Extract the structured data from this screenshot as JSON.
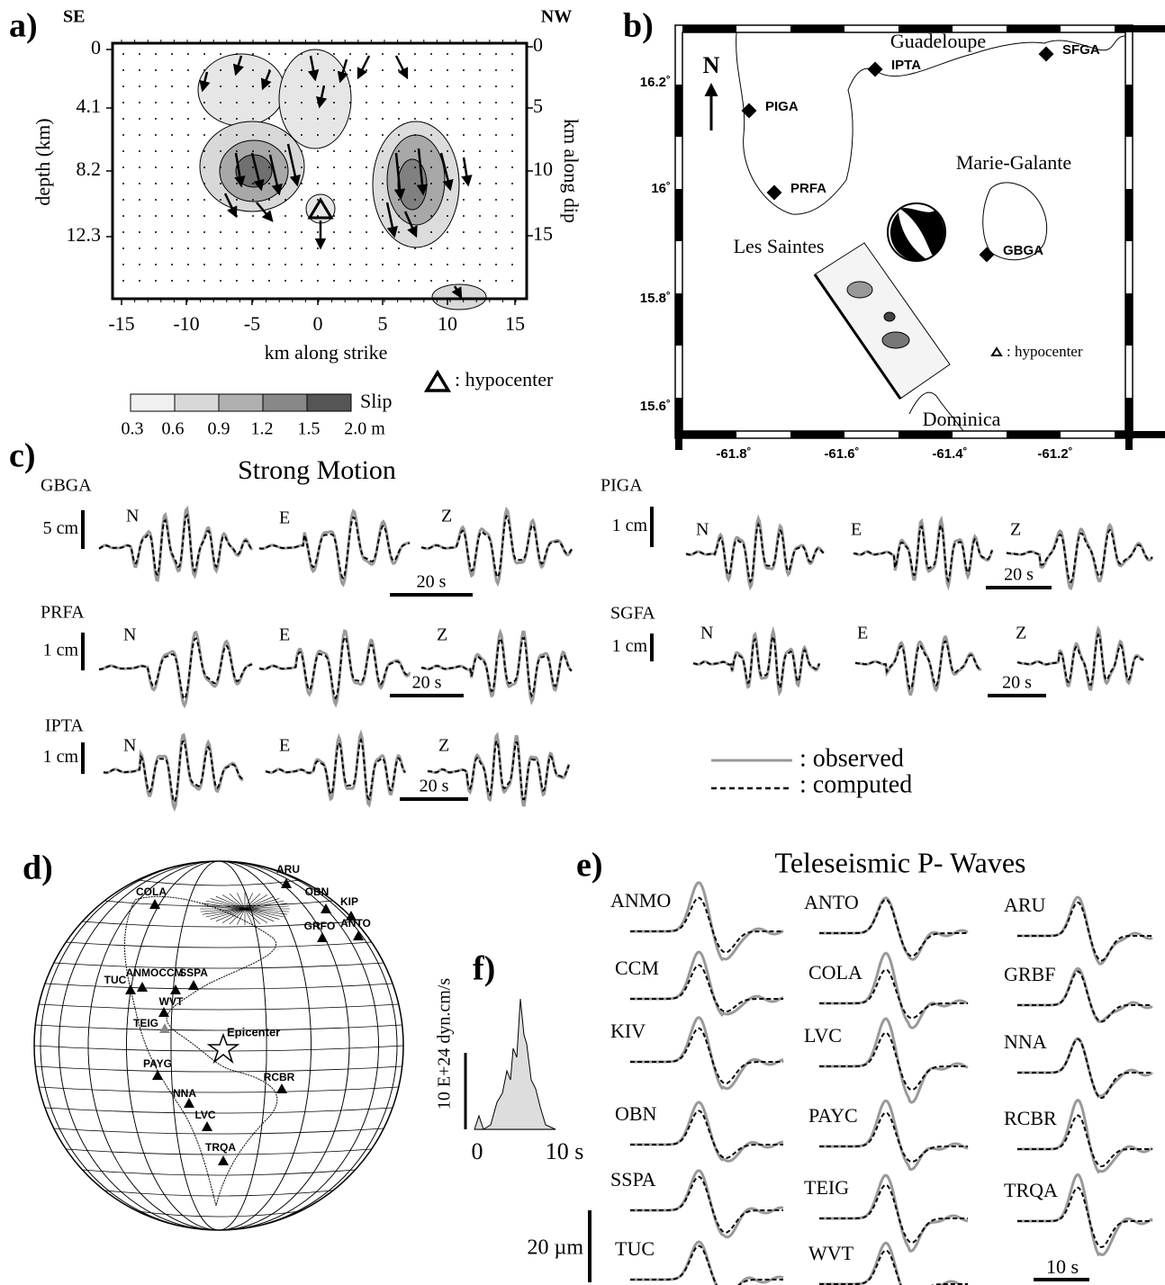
{
  "panel_a": {
    "label": "a)",
    "left_side": "SE",
    "right_side": "NW",
    "depth_ticks": [
      "0",
      "4.1",
      "8.2",
      "12.3"
    ],
    "depth_label": "depth (km)",
    "dip_ticks": [
      "0",
      "5",
      "10",
      "15"
    ],
    "dip_label": "km along dip",
    "strike_ticks": [
      "-15",
      "-10",
      "-5",
      "0",
      "5",
      "10",
      "15"
    ],
    "strike_label": "km along strike",
    "hypocenter_label": ": hypocenter",
    "slip_title": "Slip",
    "slip_ticks": [
      "0.3",
      "0.6",
      "0.9",
      "1.2",
      "1.5",
      "2.0 m"
    ]
  },
  "panel_b": {
    "label": "b)",
    "north": "N",
    "stations": [
      "PIGA",
      "PRFA",
      "IPTA",
      "SFGA",
      "GBGA"
    ],
    "places": [
      "Guadeloupe",
      "Marie-Galante",
      "Les Saintes",
      "Dominica"
    ],
    "lat_ticks": [
      "16.2˚",
      "16˚",
      "15.8˚",
      "15.6˚"
    ],
    "lon_ticks": [
      "-61.8˚",
      "-61.6˚",
      "-61.4˚",
      "-61.2˚"
    ],
    "hypocenter_label": ": hypocenter"
  },
  "panel_c": {
    "label": "c)",
    "title": "Strong Motion",
    "stations": [
      {
        "name": "GBGA",
        "scale": "5 cm"
      },
      {
        "name": "PRFA",
        "scale": "1 cm"
      },
      {
        "name": "IPTA",
        "scale": "1 cm"
      },
      {
        "name": "PIGA",
        "scale": "1 cm"
      },
      {
        "name": "SGFA",
        "scale": "1 cm"
      }
    ],
    "components": [
      "N",
      "E",
      "Z"
    ],
    "time_scale": "20 s",
    "legend": {
      "observed": ": observed",
      "computed": ": computed"
    }
  },
  "panel_d": {
    "label": "d)",
    "stations": [
      "ARU",
      "COLA",
      "OBN",
      "KIP",
      "GRFO",
      "ANTO",
      "TUC",
      "ANMO",
      "CCM",
      "SSPA",
      "WVT",
      "TEIG",
      "PAYG",
      "RCBR",
      "NNA",
      "LVC",
      "TRQA"
    ],
    "epicenter": "Epicenter"
  },
  "panel_f": {
    "label": "f)",
    "y_label": "10 E+24 dyn.cm/s",
    "x_ticks": [
      "0",
      "10 s"
    ]
  },
  "panel_e": {
    "label": "e)",
    "title": "Teleseismic P- Waves",
    "stations": [
      "ANMO",
      "CCM",
      "KIV",
      "OBN",
      "SSPA",
      "TUC",
      "ANTO",
      "COLA",
      "LVC",
      "PAYC",
      "TEIG",
      "WVT",
      "ARU",
      "GRBF",
      "NNA",
      "RCBR",
      "TRQA"
    ],
    "amplitude_scale": "20 µm",
    "time_scale": "10 s"
  }
}
